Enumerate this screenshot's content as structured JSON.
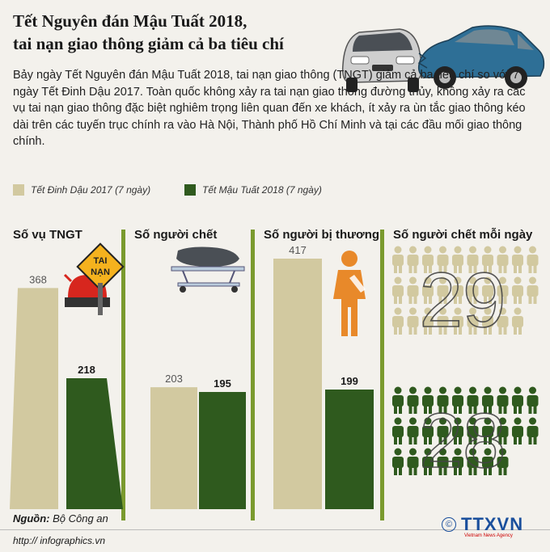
{
  "title_line1": "Tết Nguyên đán Mậu Tuất 2018,",
  "title_line2": "tai nạn giao thông giảm cả ba tiêu chí",
  "intro": "Bảy ngày Tết Nguyên đán Mậu Tuất 2018, tai nạn giao thông (TNGT) giảm cả ba tiêu chí so với 7 ngày Tết Đinh Dậu 2017. Toàn quốc không xảy ra tai nạn giao thông đường thủy, không xảy ra các vụ tai nạn giao thông đặc biệt nghiêm trọng liên quan đến xe khách, ít xảy ra ùn tắc giao thông kéo dài trên các tuyến trục chính ra vào Hà Nội, Thành phố Hồ Chí Minh và tại các đầu mối giao thông chính.",
  "legend": {
    "series_2017": "Tết Đinh Dậu 2017 (7 ngày)",
    "series_2018": "Tết Mậu Tuất 2018 (7 ngày)"
  },
  "sign_text_line1": "TAI",
  "sign_text_line2": "NẠN",
  "colors": {
    "series_2017": "#d2c9a0",
    "series_2018": "#2f5a1e",
    "accent_green": "#7a9a2e",
    "orange": "#e8892a"
  },
  "chart_data": [
    {
      "type": "bar",
      "title": "Số vụ TNGT",
      "series": [
        {
          "name": "Tết Đinh Dậu 2017 (7 ngày)",
          "value": 368
        },
        {
          "name": "Tết Mậu Tuất 2018 (7 ngày)",
          "value": 218
        }
      ]
    },
    {
      "type": "bar",
      "title": "Số người chết",
      "series": [
        {
          "name": "Tết Đinh Dậu 2017 (7 ngày)",
          "value": 203
        },
        {
          "name": "Tết Mậu Tuất 2018 (7 ngày)",
          "value": 195
        }
      ]
    },
    {
      "type": "bar",
      "title": "Số người bị thương",
      "series": [
        {
          "name": "Tết Đinh Dậu 2017 (7 ngày)",
          "value": 417
        },
        {
          "name": "Tết Mậu Tuất 2018 (7 ngày)",
          "value": 199
        }
      ]
    },
    {
      "type": "pictogram",
      "title": "Số người chết mỗi ngày",
      "series": [
        {
          "name": "Tết Đinh Dậu 2017 (7 ngày)",
          "value": 29
        },
        {
          "name": "Tết Mậu Tuất 2018 (7 ngày)",
          "value": 28
        }
      ]
    }
  ],
  "source_label": "Nguồn:",
  "source_value": "Bộ Công an",
  "url": "http:// infographics.vn",
  "logo_text": "TTXVN",
  "logo_sub": "Vietnam News Agency"
}
